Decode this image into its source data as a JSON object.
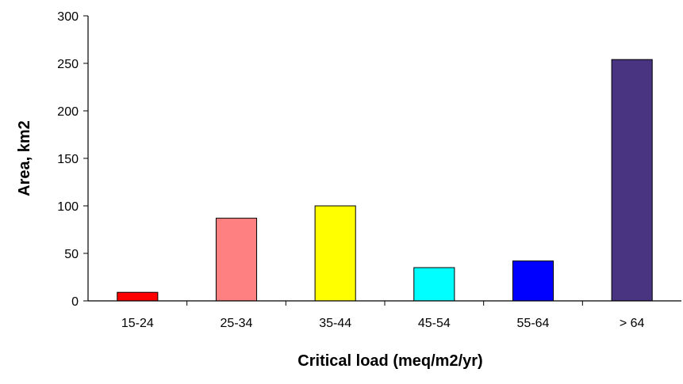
{
  "chart_data": {
    "type": "bar",
    "title": "",
    "xlabel": "Critical load (meq/m2/yr)",
    "ylabel": "Area, km2",
    "categories": [
      "15-24",
      "25-34",
      "35-44",
      "45-54",
      "55-64",
      "> 64"
    ],
    "values": [
      9,
      87,
      100,
      35,
      42,
      254
    ],
    "colors": [
      "#FF0000",
      "#FF8080",
      "#FFFF00",
      "#00FFFF",
      "#0000FF",
      "#483480"
    ],
    "ylim": [
      0,
      300
    ],
    "yticks": [
      "0",
      "50",
      "100",
      "150",
      "200",
      "250",
      "300"
    ],
    "grid": false,
    "legend": "none"
  }
}
